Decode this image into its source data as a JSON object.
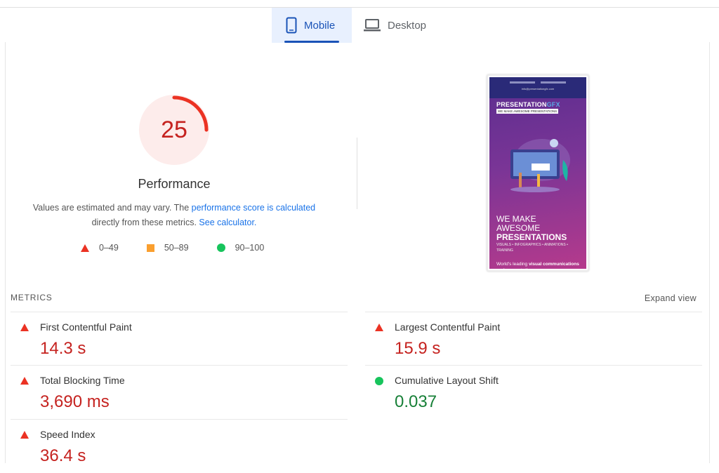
{
  "tabs": [
    {
      "label": "Mobile",
      "icon": "smartphone-icon",
      "active": true
    },
    {
      "label": "Desktop",
      "icon": "laptop-icon",
      "active": false
    }
  ],
  "performance": {
    "score": "25",
    "score_value": 25,
    "title": "Performance",
    "desc_prefix": "Values are estimated and may vary. The ",
    "desc_link1": "performance score is calculated",
    "desc_mid": " directly from these metrics. ",
    "desc_link2": "See calculator.",
    "colors": {
      "fail": "#eb3223",
      "average": "#fa9f2f",
      "pass": "#17c45c",
      "score_text": "#c5221f",
      "gauge_bg": "#fdeceb"
    }
  },
  "legend": [
    {
      "shape": "triangle",
      "label": "0–49"
    },
    {
      "shape": "square",
      "label": "50–89"
    },
    {
      "shape": "circle",
      "label": "90–100"
    }
  ],
  "screenshot": {
    "email": "info@presentationgfx.com",
    "logo_text": "PRESENTATIONGFX",
    "tagline": "WE MAKE AWESOME PRESENTATIONS",
    "headline_1": "WE MAKE",
    "headline_2": "AWESOME",
    "headline_3": "PRESENTATIONS",
    "subline": "VISUALS • INFOGRAPHICS • ANIMATIONS • TRAINING",
    "lead_prefix": "World's leading ",
    "lead_bold": "visual communications and presentation"
  },
  "metrics": {
    "label": "METRICS",
    "expand": "Expand view",
    "items": [
      {
        "name": "First Contentful Paint",
        "value": "14.3 s",
        "status": "fail"
      },
      {
        "name": "Largest Contentful Paint",
        "value": "15.9 s",
        "status": "fail"
      },
      {
        "name": "Total Blocking Time",
        "value": "3,690 ms",
        "status": "fail"
      },
      {
        "name": "Cumulative Layout Shift",
        "value": "0.037",
        "status": "pass"
      },
      {
        "name": "Speed Index",
        "value": "36.4 s",
        "status": "fail"
      }
    ]
  }
}
